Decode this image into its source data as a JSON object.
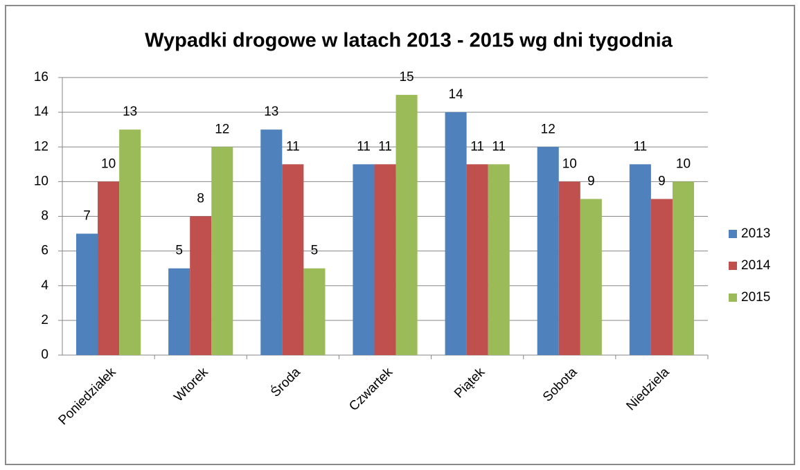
{
  "chart_data": {
    "type": "bar",
    "title": "Wypadki drogowe w latach 2013 - 2015 wg dni tygodnia",
    "categories": [
      "Poniedziałek",
      "Wtorek",
      "Środa",
      "Czwartek",
      "Piątek",
      "Sobota",
      "Niedziela"
    ],
    "series": [
      {
        "name": "2013",
        "color": "#4f81bd",
        "values": [
          7,
          5,
          13,
          11,
          14,
          12,
          11
        ]
      },
      {
        "name": "2014",
        "color": "#c0504d",
        "values": [
          10,
          8,
          11,
          11,
          11,
          10,
          9
        ]
      },
      {
        "name": "2015",
        "color": "#9bbb59",
        "values": [
          13,
          12,
          5,
          15,
          11,
          9,
          10
        ]
      }
    ],
    "ylim": [
      0,
      16
    ],
    "yticks": [
      0,
      2,
      4,
      6,
      8,
      10,
      12,
      14,
      16
    ],
    "grid": true,
    "legend_position": "right",
    "data_labels": true
  }
}
